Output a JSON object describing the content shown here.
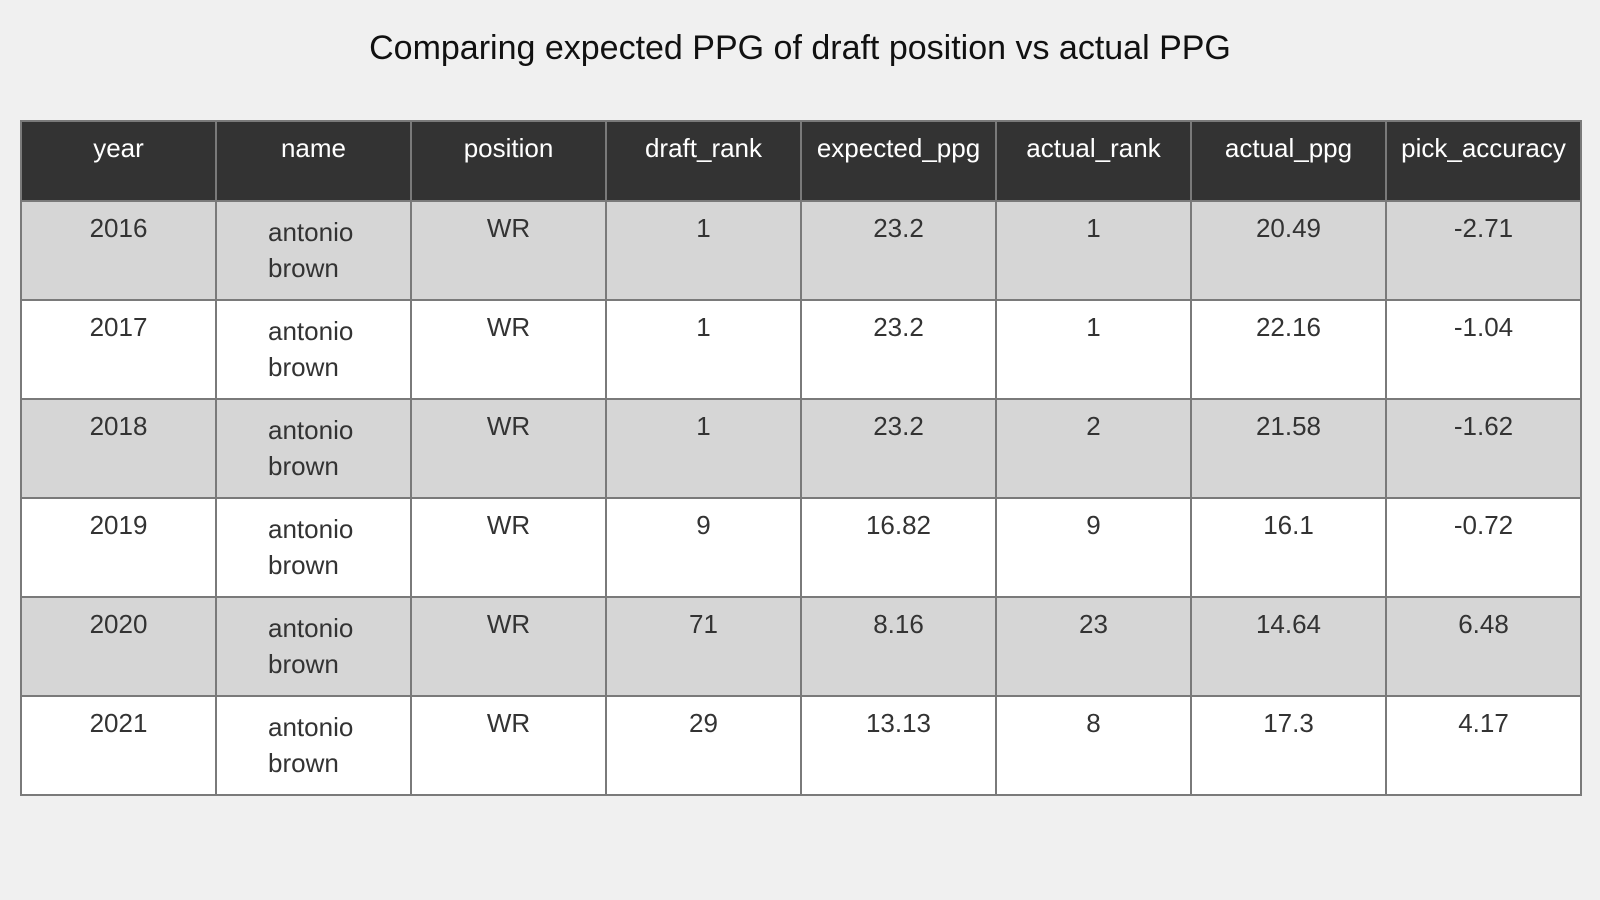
{
  "chart_data": {
    "type": "table",
    "title": "Comparing expected PPG of draft position vs actual PPG",
    "columns": [
      "year",
      "name",
      "position",
      "draft_rank",
      "expected_ppg",
      "actual_rank",
      "actual_ppg",
      "pick_accuracy"
    ],
    "rows": [
      [
        "2016",
        "antonio brown",
        "WR",
        "1",
        "23.2",
        "1",
        "20.49",
        "-2.71"
      ],
      [
        "2017",
        "antonio brown",
        "WR",
        "1",
        "23.2",
        "1",
        "22.16",
        "-1.04"
      ],
      [
        "2018",
        "antonio brown",
        "WR",
        "1",
        "23.2",
        "2",
        "21.58",
        "-1.62"
      ],
      [
        "2019",
        "antonio brown",
        "WR",
        "9",
        "16.82",
        "9",
        "16.1",
        "-0.72"
      ],
      [
        "2020",
        "antonio brown",
        "WR",
        "71",
        "8.16",
        "23",
        "14.64",
        "6.48"
      ],
      [
        "2021",
        "antonio brown",
        "WR",
        "29",
        "13.13",
        "8",
        "17.3",
        "4.17"
      ]
    ],
    "colors": {
      "header_bg": "#333333",
      "header_text": "#ffffff",
      "row_shaded": "#d6d6d6",
      "row_plain": "#ffffff",
      "border": "#7a7a7a",
      "background": "#f0f0f0"
    }
  }
}
